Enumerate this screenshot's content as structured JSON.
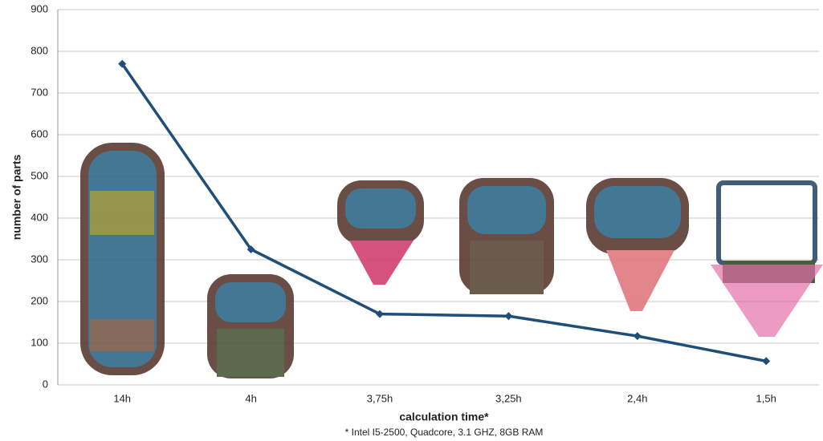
{
  "chart_data": {
    "type": "line",
    "categories": [
      "14h",
      "4h",
      "3,75h",
      "3,25h",
      "2,4h",
      "1,5h"
    ],
    "series": [
      {
        "name": "number of parts",
        "color": "#1f4e79",
        "values": [
          770,
          325,
          170,
          165,
          117,
          57
        ]
      }
    ],
    "ylim": [
      0,
      900
    ],
    "yticks": [
      0,
      100,
      200,
      300,
      400,
      500,
      600,
      700,
      800,
      900
    ],
    "grid": true,
    "xlabel": "calculation time*",
    "ylabel": "number of parts",
    "footnote": "* Intel I5-2500, Quadcore, 3.1 GHZ, 8GB RAM"
  }
}
